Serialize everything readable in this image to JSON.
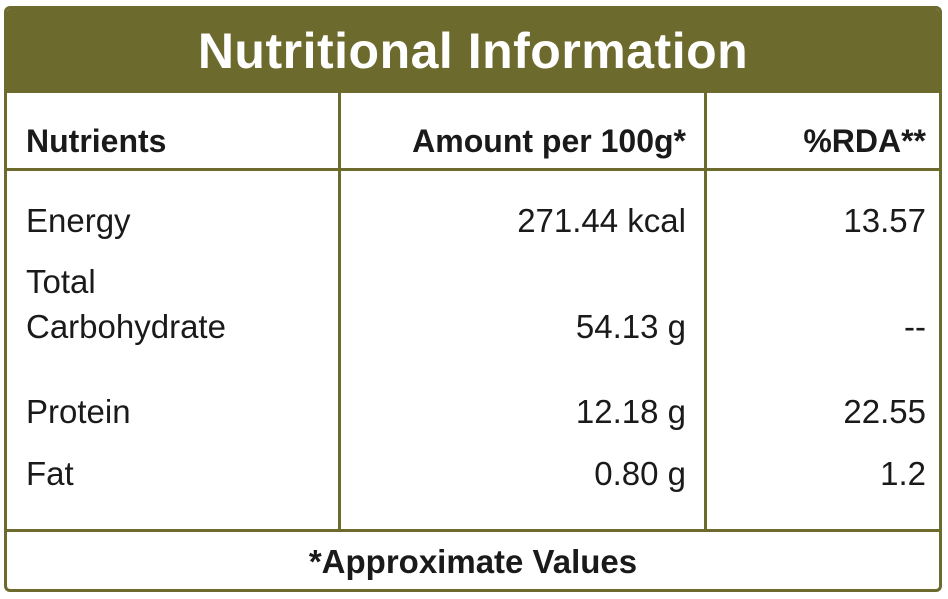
{
  "title": "Nutritional Information",
  "headers": {
    "nutrients": "Nutrients",
    "amount": "Amount per 100g*",
    "rda": "%RDA**"
  },
  "rows": [
    {
      "nutrient": "Energy",
      "amount": "271.44 kcal",
      "rda": "13.57"
    },
    {
      "nutrient_line1": "Total",
      "nutrient_line2": "Carbohydrate",
      "amount": "54.13 g",
      "rda": "--"
    },
    {
      "nutrient": "Protein",
      "amount": "12.18 g",
      "rda": "22.55"
    },
    {
      "nutrient": "Fat",
      "amount": "0.80 g",
      "rda": "1.2"
    }
  ],
  "footer": "*Approximate Values",
  "colors": {
    "accent": "#6d6a2d",
    "text": "#1a1a1a",
    "background": "#ffffff"
  }
}
